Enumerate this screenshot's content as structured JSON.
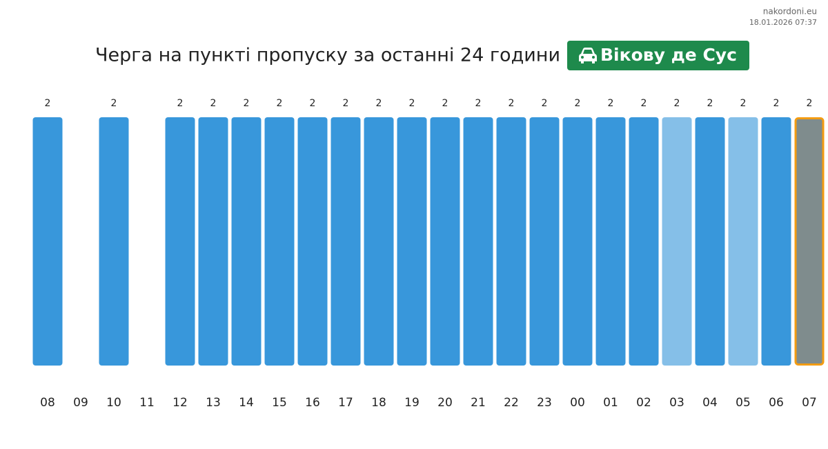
{
  "site": "nakordoni.eu",
  "timestamp": "18.01.2026 07:37",
  "chart_data": {
    "type": "bar",
    "title": "Черга на пункті пропуску за останні 24 години",
    "badge": "Вікову де Сус",
    "badge_color": "#1e8a4c",
    "categories": [
      "08",
      "09",
      "10",
      "11",
      "12",
      "13",
      "14",
      "15",
      "16",
      "17",
      "18",
      "19",
      "20",
      "21",
      "22",
      "23",
      "00",
      "01",
      "02",
      "03",
      "04",
      "05",
      "06",
      "07"
    ],
    "values": [
      2,
      null,
      2,
      null,
      2,
      2,
      2,
      2,
      2,
      2,
      2,
      2,
      2,
      2,
      2,
      2,
      2,
      2,
      2,
      2,
      2,
      2,
      2,
      2
    ],
    "colors": [
      "#3897db",
      null,
      "#3897db",
      null,
      "#3897db",
      "#3897db",
      "#3897db",
      "#3897db",
      "#3897db",
      "#3897db",
      "#3897db",
      "#3897db",
      "#3897db",
      "#3897db",
      "#3897db",
      "#3897db",
      "#3897db",
      "#3897db",
      "#3897db",
      "#85bfe8",
      "#3897db",
      "#85bfe8",
      "#3897db",
      "#7f8c8d"
    ],
    "stroke_colors": [
      null,
      null,
      null,
      null,
      null,
      null,
      null,
      null,
      null,
      null,
      null,
      null,
      null,
      null,
      null,
      null,
      null,
      null,
      null,
      null,
      null,
      null,
      null,
      "#f39c12"
    ]
  }
}
